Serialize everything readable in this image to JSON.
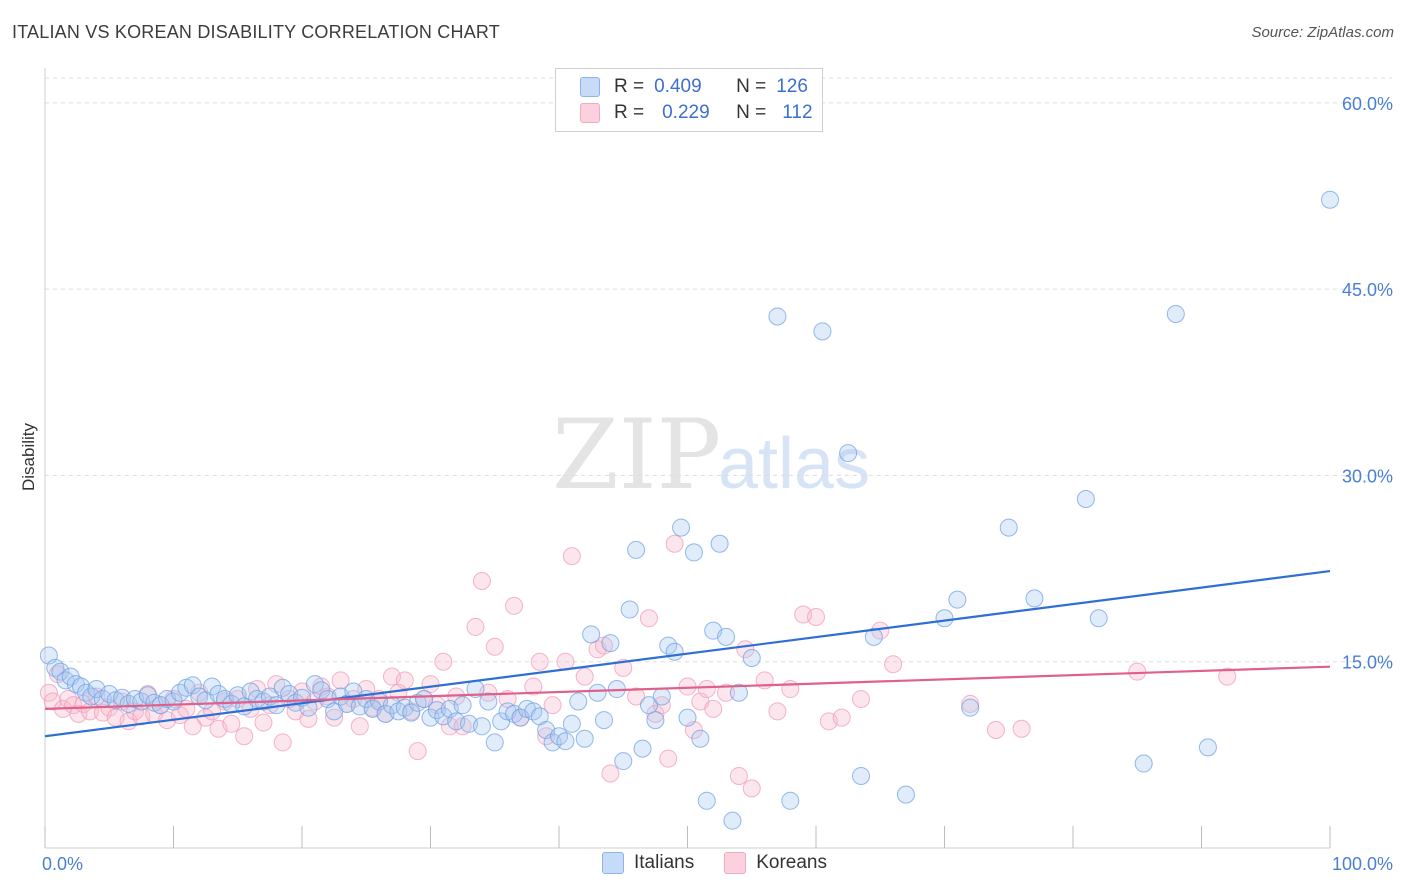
{
  "title": "ITALIAN VS KOREAN DISABILITY CORRELATION CHART",
  "source": "Source: ZipAtlas.com",
  "watermark": {
    "zip": "ZIP",
    "atlas": "atlas"
  },
  "legend": {
    "rows": [
      {
        "r_label": "R =",
        "r_value": "0.409",
        "n_label": "N =",
        "n_value": "126",
        "color": "#8ab4ea"
      },
      {
        "r_label": "R =",
        "r_value": "0.229",
        "n_label": "N =",
        "n_value": "112",
        "color": "#f4a9c0"
      }
    ]
  },
  "bottom_legend": [
    {
      "label": "Italians",
      "color": "#8ab4ea"
    },
    {
      "label": "Koreans",
      "color": "#f4a9c0"
    }
  ],
  "chart_data": {
    "type": "scatter",
    "title": "ITALIAN VS KOREAN DISABILITY CORRELATION CHART",
    "xlabel": "",
    "ylabel": "Disability",
    "xlim": [
      0,
      100
    ],
    "ylim": [
      0,
      62
    ],
    "x_tick_labels": [
      "0.0%",
      "100.0%"
    ],
    "y_ticks": [
      15,
      30,
      45,
      60
    ],
    "y_tick_labels": [
      "15.0%",
      "30.0%",
      "45.0%",
      "60.0%"
    ],
    "grid": true,
    "series": [
      {
        "name": "Italians",
        "color": "#6fa2e6",
        "line_color": "#2f6fd4",
        "trend": {
          "x": [
            0,
            100
          ],
          "y": [
            9.0,
            22.3
          ]
        },
        "points": [
          [
            0.3,
            15.5
          ],
          [
            0.8,
            14.5
          ],
          [
            1.2,
            14.2
          ],
          [
            1.6,
            13.5
          ],
          [
            2.0,
            13.8
          ],
          [
            2.4,
            13.2
          ],
          [
            2.8,
            13.0
          ],
          [
            3.2,
            12.5
          ],
          [
            3.6,
            12.2
          ],
          [
            4.0,
            12.8
          ],
          [
            4.5,
            12.0
          ],
          [
            5.0,
            12.4
          ],
          [
            5.5,
            11.9
          ],
          [
            6.0,
            12.1
          ],
          [
            6.5,
            11.6
          ],
          [
            7.0,
            12.0
          ],
          [
            7.5,
            11.8
          ],
          [
            8.0,
            12.3
          ],
          [
            8.5,
            11.7
          ],
          [
            9.0,
            11.5
          ],
          [
            9.5,
            12.0
          ],
          [
            10.0,
            11.8
          ],
          [
            10.5,
            12.5
          ],
          [
            11.0,
            12.9
          ],
          [
            11.5,
            13.1
          ],
          [
            12.0,
            12.2
          ],
          [
            12.5,
            11.9
          ],
          [
            13.0,
            13.0
          ],
          [
            13.5,
            12.4
          ],
          [
            14.0,
            12.0
          ],
          [
            14.5,
            11.6
          ],
          [
            15.0,
            12.3
          ],
          [
            15.5,
            11.4
          ],
          [
            16.0,
            12.6
          ],
          [
            16.5,
            12.0
          ],
          [
            17.0,
            11.8
          ],
          [
            17.5,
            12.2
          ],
          [
            18.0,
            11.5
          ],
          [
            18.5,
            12.9
          ],
          [
            19.0,
            12.4
          ],
          [
            19.5,
            11.7
          ],
          [
            20.0,
            12.1
          ],
          [
            20.5,
            11.3
          ],
          [
            21.0,
            13.2
          ],
          [
            21.5,
            12.7
          ],
          [
            22.0,
            12.0
          ],
          [
            22.5,
            11.0
          ],
          [
            23.0,
            12.2
          ],
          [
            23.5,
            11.6
          ],
          [
            24.0,
            12.6
          ],
          [
            24.5,
            11.4
          ],
          [
            25.0,
            12.0
          ],
          [
            25.5,
            11.2
          ],
          [
            26.0,
            11.8
          ],
          [
            26.5,
            10.8
          ],
          [
            27.0,
            11.5
          ],
          [
            27.5,
            11.0
          ],
          [
            28.0,
            11.3
          ],
          [
            28.5,
            10.9
          ],
          [
            29.0,
            11.7
          ],
          [
            29.5,
            12.0
          ],
          [
            30.0,
            10.5
          ],
          [
            30.5,
            11.1
          ],
          [
            31.0,
            10.6
          ],
          [
            31.5,
            11.2
          ],
          [
            32.0,
            10.2
          ],
          [
            32.5,
            11.5
          ],
          [
            33.0,
            10.0
          ],
          [
            33.5,
            12.8
          ],
          [
            34.0,
            9.8
          ],
          [
            34.5,
            11.8
          ],
          [
            35.0,
            8.5
          ],
          [
            35.5,
            10.2
          ],
          [
            36.0,
            11.0
          ],
          [
            36.5,
            10.8
          ],
          [
            37.0,
            10.5
          ],
          [
            37.5,
            11.2
          ],
          [
            38.0,
            11.0
          ],
          [
            38.5,
            10.6
          ],
          [
            39.0,
            9.5
          ],
          [
            39.5,
            8.5
          ],
          [
            40.0,
            9.0
          ],
          [
            40.5,
            8.6
          ],
          [
            41.0,
            10.0
          ],
          [
            41.5,
            11.8
          ],
          [
            42.0,
            8.8
          ],
          [
            42.5,
            17.2
          ],
          [
            43.0,
            12.5
          ],
          [
            43.5,
            10.3
          ],
          [
            44.0,
            16.5
          ],
          [
            44.5,
            12.8
          ],
          [
            45.0,
            7.0
          ],
          [
            45.5,
            19.2
          ],
          [
            46.0,
            24.0
          ],
          [
            46.5,
            8.0
          ],
          [
            47.0,
            11.5
          ],
          [
            47.5,
            10.3
          ],
          [
            48.0,
            12.2
          ],
          [
            48.5,
            16.3
          ],
          [
            49.0,
            15.8
          ],
          [
            49.5,
            25.8
          ],
          [
            50.0,
            10.5
          ],
          [
            50.5,
            23.8
          ],
          [
            51.0,
            8.8
          ],
          [
            51.5,
            3.8
          ],
          [
            52.0,
            17.5
          ],
          [
            52.5,
            24.5
          ],
          [
            53.0,
            17.0
          ],
          [
            53.5,
            2.2
          ],
          [
            54.0,
            12.5
          ],
          [
            55.0,
            15.3
          ],
          [
            57.0,
            42.8
          ],
          [
            58.0,
            3.8
          ],
          [
            60.5,
            41.6
          ],
          [
            62.5,
            31.8
          ],
          [
            63.5,
            5.8
          ],
          [
            64.5,
            17.0
          ],
          [
            67.0,
            4.3
          ],
          [
            70.0,
            18.5
          ],
          [
            71.0,
            20.0
          ],
          [
            72.0,
            11.3
          ],
          [
            75.0,
            25.8
          ],
          [
            77.0,
            20.1
          ],
          [
            81.0,
            28.1
          ],
          [
            82.0,
            18.5
          ],
          [
            85.5,
            6.8
          ],
          [
            88.0,
            43.0
          ],
          [
            90.5,
            8.1
          ],
          [
            100.0,
            52.2
          ]
        ]
      },
      {
        "name": "Koreans",
        "color": "#f29bb8",
        "line_color": "#e0608a",
        "trend": {
          "x": [
            0,
            100
          ],
          "y": [
            11.2,
            14.6
          ]
        },
        "points": [
          [
            0.3,
            12.5
          ],
          [
            0.6,
            11.8
          ],
          [
            1.0,
            14.0
          ],
          [
            1.4,
            11.2
          ],
          [
            1.8,
            12.0
          ],
          [
            2.2,
            11.5
          ],
          [
            2.6,
            10.8
          ],
          [
            3.0,
            11.6
          ],
          [
            3.5,
            11.0
          ],
          [
            4.0,
            12.2
          ],
          [
            4.5,
            10.9
          ],
          [
            5.0,
            11.3
          ],
          [
            5.5,
            10.5
          ],
          [
            6.0,
            11.8
          ],
          [
            6.5,
            10.2
          ],
          [
            7.0,
            11.0
          ],
          [
            7.5,
            10.6
          ],
          [
            8.0,
            12.4
          ],
          [
            8.5,
            10.8
          ],
          [
            9.0,
            11.5
          ],
          [
            9.5,
            10.3
          ],
          [
            10.0,
            12.0
          ],
          [
            10.5,
            10.7
          ],
          [
            11.0,
            11.2
          ],
          [
            11.5,
            9.8
          ],
          [
            12.0,
            12.5
          ],
          [
            12.5,
            10.5
          ],
          [
            13.0,
            11.0
          ],
          [
            13.5,
            9.6
          ],
          [
            14.0,
            11.8
          ],
          [
            14.5,
            10.0
          ],
          [
            15.0,
            12.0
          ],
          [
            15.5,
            9.0
          ],
          [
            16.0,
            11.2
          ],
          [
            16.5,
            12.8
          ],
          [
            17.0,
            10.1
          ],
          [
            17.5,
            11.5
          ],
          [
            18.0,
            13.2
          ],
          [
            18.5,
            8.5
          ],
          [
            19.0,
            12.0
          ],
          [
            19.5,
            11.0
          ],
          [
            20.0,
            12.6
          ],
          [
            20.5,
            10.4
          ],
          [
            21.0,
            11.8
          ],
          [
            21.5,
            13.0
          ],
          [
            22.0,
            12.2
          ],
          [
            22.5,
            10.5
          ],
          [
            23.0,
            13.5
          ],
          [
            23.5,
            11.6
          ],
          [
            24.0,
            12.0
          ],
          [
            24.5,
            9.8
          ],
          [
            25.0,
            12.8
          ],
          [
            25.5,
            11.3
          ],
          [
            26.0,
            12.0
          ],
          [
            26.5,
            10.8
          ],
          [
            27.0,
            13.8
          ],
          [
            27.5,
            12.5
          ],
          [
            28.0,
            13.5
          ],
          [
            28.5,
            11.0
          ],
          [
            29.0,
            7.8
          ],
          [
            29.5,
            12.0
          ],
          [
            30.0,
            13.2
          ],
          [
            30.5,
            11.5
          ],
          [
            31.0,
            15.0
          ],
          [
            31.5,
            9.8
          ],
          [
            32.0,
            12.2
          ],
          [
            32.5,
            9.8
          ],
          [
            33.5,
            17.8
          ],
          [
            34.0,
            21.5
          ],
          [
            34.5,
            12.5
          ],
          [
            35.0,
            16.2
          ],
          [
            36.0,
            12.0
          ],
          [
            36.5,
            19.5
          ],
          [
            37.0,
            10.5
          ],
          [
            38.0,
            13.0
          ],
          [
            38.5,
            15.0
          ],
          [
            39.0,
            9.0
          ],
          [
            39.5,
            11.5
          ],
          [
            40.5,
            15.0
          ],
          [
            41.0,
            23.5
          ],
          [
            42.0,
            13.8
          ],
          [
            43.0,
            16.0
          ],
          [
            43.5,
            16.3
          ],
          [
            44.0,
            6.0
          ],
          [
            45.0,
            14.5
          ],
          [
            46.0,
            12.2
          ],
          [
            47.0,
            18.5
          ],
          [
            47.5,
            10.8
          ],
          [
            48.0,
            11.5
          ],
          [
            48.5,
            7.2
          ],
          [
            49.0,
            24.5
          ],
          [
            50.0,
            13.0
          ],
          [
            50.5,
            9.5
          ],
          [
            51.0,
            11.8
          ],
          [
            51.5,
            12.8
          ],
          [
            52.0,
            11.2
          ],
          [
            53.0,
            12.5
          ],
          [
            54.0,
            5.8
          ],
          [
            54.5,
            16.0
          ],
          [
            55.0,
            4.8
          ],
          [
            56.0,
            13.5
          ],
          [
            57.0,
            11.0
          ],
          [
            58.0,
            12.8
          ],
          [
            59.0,
            18.8
          ],
          [
            60.0,
            18.6
          ],
          [
            61.0,
            10.2
          ],
          [
            62.0,
            10.5
          ],
          [
            63.5,
            12.0
          ],
          [
            65.0,
            17.5
          ],
          [
            66.0,
            14.8
          ],
          [
            72.0,
            11.6
          ],
          [
            74.0,
            9.5
          ],
          [
            76.0,
            9.6
          ],
          [
            85.0,
            14.2
          ],
          [
            92.0,
            13.8
          ]
        ]
      }
    ]
  }
}
